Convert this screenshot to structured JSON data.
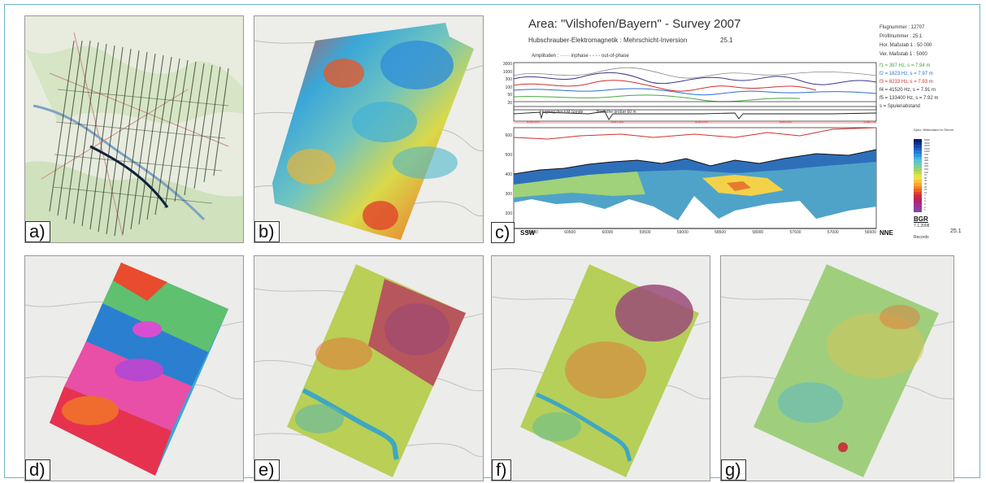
{
  "panels": [
    {
      "label": "a)"
    },
    {
      "label": "b)"
    },
    {
      "label": "c)"
    },
    {
      "label": "d)"
    },
    {
      "label": "e)"
    },
    {
      "label": "f)"
    },
    {
      "label": "g)"
    }
  ],
  "section_c": {
    "title": "Area: \"Vilshofen/Bayern\" - Survey 2007",
    "subtitle": "Hubschrauber-Elektromagnetik : Mehrschicht-Inversion",
    "profile_no": "25.1",
    "info": [
      "Flugnummer : 12707",
      "Profilnummer : 25.1",
      "Hor. Maßstab 1 : 50 000",
      "Ver. Maßstab 1 : 5000"
    ],
    "freqs": [
      {
        "text": "f1 = 387 Hz, s = 7.94 m",
        "color": "#44a83a"
      },
      {
        "text": "f2 = 1823 Hz, s = 7.97 m",
        "color": "#2a6fd0"
      },
      {
        "text": "f3 = 8233 Hz, s = 7.93 m",
        "color": "#d03030"
      },
      {
        "text": "f4 = 41520 Hz, s = 7.91 m",
        "color": "#333333"
      },
      {
        "text": "f5 = 133400 Hz, s = 7.92 m",
        "color": "#333333"
      },
      {
        "text": "s = Spulenabstand",
        "color": "#333333"
      }
    ],
    "amplitude_legend": "Amplituden :   ······ inphase   - - - - out-of-phase",
    "ylabels": [
      "3000",
      "1000",
      "300",
      "100",
      "50",
      "20"
    ],
    "ylabels_lower": [
      "600",
      "500",
      "400",
      "300",
      "200",
      "100"
    ],
    "xticks": [
      "61000",
      "60500",
      "60000",
      "59500",
      "59000",
      "58500",
      "58000",
      "57500",
      "57000",
      "56500"
    ],
    "small_red_labels": [
      "4581950",
      "4581500",
      "4581250",
      "4581000",
      "4580750"
    ],
    "mid_labels": [
      "Flugweg des EM-Sonde",
      "Bodhöhe größer 60 m"
    ],
    "left_bottom": "SSW",
    "right_bottom": "NNE",
    "records": "Records",
    "profile_no2": "25.1",
    "legend_title": "Spez. Widerstand in Ohmm",
    "legend_values": [
      "5000",
      "3000",
      "2000",
      "1500",
      "1000",
      "700",
      "500",
      "400",
      "300",
      "200",
      "150",
      "100",
      "70",
      "50",
      "40",
      "30",
      "20",
      "15",
      "10",
      "7",
      "5",
      "4",
      "3",
      "2",
      "1"
    ],
    "legend_colors": [
      "#0b1f6a",
      "#10318e",
      "#1646ad",
      "#1c5fc7",
      "#2479d6",
      "#3096de",
      "#44b0e2",
      "#5bc2d4",
      "#6ccab6",
      "#80d18f",
      "#9cd56d",
      "#bfdc52",
      "#dfe24a",
      "#f5df43",
      "#f9c43a",
      "#f7a431",
      "#f3842b",
      "#ec6328",
      "#e0432b",
      "#cf2d3b",
      "#c02258",
      "#b02476",
      "#a2308f",
      "#8f3d9c",
      "#7d47a4"
    ],
    "logo": "BGR",
    "date": "7.1.2008"
  }
}
